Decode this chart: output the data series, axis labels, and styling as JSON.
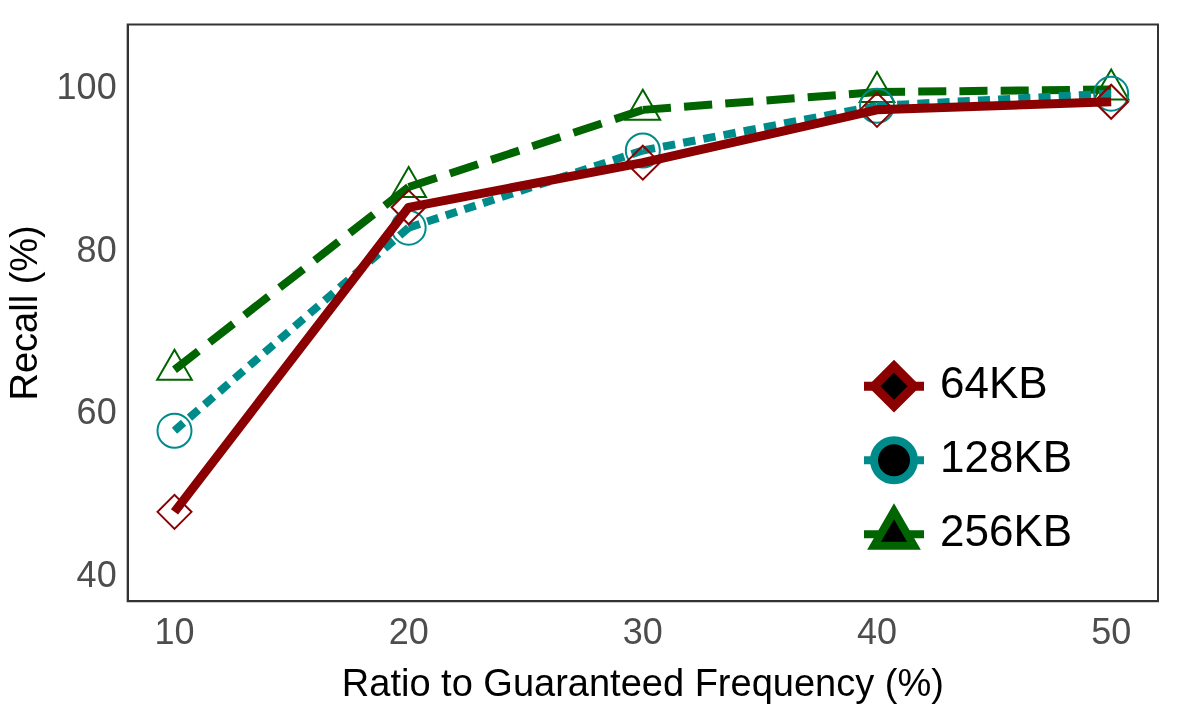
{
  "chart_data": {
    "type": "line",
    "xlabel": "Ratio to Guaranteed Frequency (%)",
    "ylabel": "Recall (%)",
    "x": [
      10,
      20,
      30,
      40,
      50
    ],
    "series": [
      {
        "name": "64KB",
        "color": "#8b0000",
        "values": [
          48,
          85.5,
          91,
          97.5,
          98.5
        ],
        "marker": "diamond",
        "line_style": "solid"
      },
      {
        "name": "128KB",
        "color": "#008b8b",
        "values": [
          58,
          83,
          92.5,
          98,
          99.5
        ],
        "marker": "circle",
        "line_style": "dotted"
      },
      {
        "name": "256KB",
        "color": "#006400",
        "values": [
          65.5,
          88,
          97.5,
          99.7,
          100
        ],
        "marker": "triangle",
        "line_style": "dashed"
      }
    ],
    "xlim": [
      8,
      52
    ],
    "xticks": [
      10,
      20,
      30,
      40,
      50
    ],
    "ylim": [
      37,
      108
    ],
    "yticks": [
      40,
      60,
      80,
      100
    ],
    "grid": false,
    "legend": "bottom right"
  }
}
